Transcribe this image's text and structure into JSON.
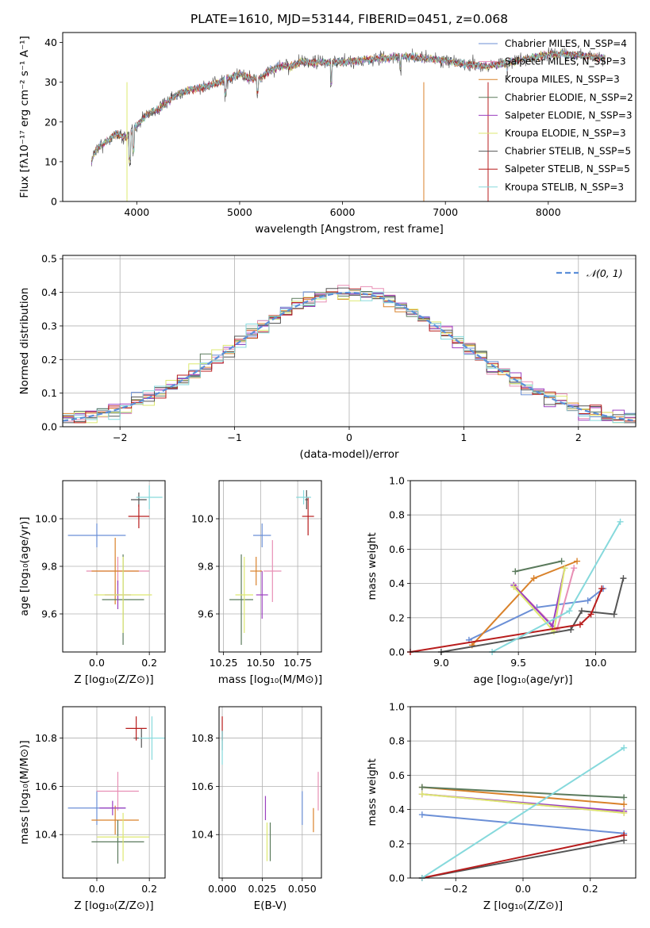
{
  "figure": {
    "title": "PLATE=1610, MJD=53144, FIBERID=0451, z=0.068"
  },
  "chart_data": [
    {
      "id": "spectrum",
      "type": "line",
      "xlabel": "wavelength [Angstrom, rest frame]",
      "ylabel": "Flux [fλ10⁻¹⁷ erg cm⁻² s⁻¹ A⁻¹]",
      "xlim": [
        3280,
        8850
      ],
      "ylim": [
        0,
        42.5
      ],
      "xticks": [
        4000,
        5000,
        6000,
        7000,
        8000
      ],
      "yticks": [
        0,
        10,
        20,
        30,
        40
      ],
      "grid": false,
      "legend_position": "right",
      "continuum": {
        "x": [
          3560,
          3600,
          3700,
          3800,
          3900,
          4000,
          4100,
          4200,
          4300,
          4400,
          4500,
          4600,
          4700,
          4800,
          4900,
          5000,
          5100,
          5200,
          5300,
          5400,
          5500,
          5600,
          5800,
          6000,
          6200,
          6400,
          6600,
          6800,
          7000,
          7200,
          7400,
          7600,
          7800,
          8000,
          8200,
          8400,
          8550
        ],
        "y": [
          10,
          13,
          15,
          17,
          16,
          19,
          22,
          23,
          25,
          27,
          28,
          28.5,
          29,
          30,
          31,
          32,
          31,
          31,
          33,
          34,
          34,
          35,
          35,
          35,
          35.5,
          36,
          36.5,
          36,
          35.5,
          34.5,
          34,
          35,
          36,
          37,
          37,
          36.5,
          36
        ]
      },
      "series": [
        {
          "name": "Chabrier MILES, N_SSP=4",
          "color": "#6b8fd6"
        },
        {
          "name": "Salpeter MILES, N_SSP=3",
          "color": "#e88fb5"
        },
        {
          "name": "Kroupa MILES, N_SSP=3",
          "color": "#d9822b"
        },
        {
          "name": "Chabrier ELODIE, N_SSP=2",
          "color": "#5a7a5c"
        },
        {
          "name": "Salpeter ELODIE, N_SSP=3",
          "color": "#9b3fc0"
        },
        {
          "name": "Kroupa ELODIE, N_SSP=3",
          "color": "#dde870"
        },
        {
          "name": "Chabrier STELIB, N_SSP=5",
          "color": "#555555"
        },
        {
          "name": "Salpeter STELIB, N_SSP=5",
          "color": "#b81d1d"
        },
        {
          "name": "Kroupa STELIB, N_SSP=3",
          "color": "#86d9dc"
        }
      ]
    },
    {
      "id": "residuals",
      "type": "histogram",
      "xlabel": "(data-model)/error",
      "ylabel": "Normed distribution",
      "xlim": [
        -2.5,
        2.5
      ],
      "ylim": [
        0,
        0.51
      ],
      "xticks": [
        -2,
        -1,
        0,
        1,
        2
      ],
      "xtick_labels": [
        "−2",
        "−1",
        "0",
        "1",
        "2"
      ],
      "yticks": [
        0.0,
        0.1,
        0.2,
        0.3,
        0.4,
        0.5
      ],
      "ytick_labels": [
        "0.0",
        "0.1",
        "0.2",
        "0.3",
        "0.4",
        "0.5"
      ],
      "grid": true,
      "legend_position": "top-right",
      "gaussian_label": "𝒩(0, 1)",
      "gaussian_color": "#5b8fd9",
      "bin_width": 0.1
    },
    {
      "id": "age-vs-Z",
      "type": "scatter",
      "xlabel": "Z [log₁₀(Z/Z⊙)]",
      "ylabel": "age  [log₁₀(age/yr)]",
      "xlim": [
        -0.13,
        0.26
      ],
      "ylim": [
        9.44,
        10.16
      ],
      "xticks": [
        0.0,
        0.2
      ],
      "xtick_labels": [
        "0.0",
        "0.2"
      ],
      "yticks": [
        9.6,
        9.8,
        10.0
      ],
      "ytick_labels": [
        "9.6",
        "9.8",
        "10.0"
      ],
      "grid": true,
      "points": [
        {
          "color": "#6b8fd6",
          "x": 0.0,
          "y": 9.93,
          "xerr": 0.11,
          "yerr": 0.05
        },
        {
          "color": "#e88fb5",
          "x": 0.08,
          "y": 9.78,
          "xerr": 0.12,
          "yerr": 0.06
        },
        {
          "color": "#d9822b",
          "x": 0.07,
          "y": 9.78,
          "xerr": 0.09,
          "yerr": 0.14
        },
        {
          "color": "#5a7a5c",
          "x": 0.1,
          "y": 9.66,
          "xerr": 0.08,
          "yerr": 0.19
        },
        {
          "color": "#9b3fc0",
          "x": 0.08,
          "y": 9.68,
          "xerr": 0.05,
          "yerr": 0.06
        },
        {
          "color": "#dde870",
          "x": 0.1,
          "y": 9.68,
          "xerr": 0.11,
          "yerr": 0.16
        },
        {
          "color": "#555555",
          "x": 0.16,
          "y": 10.08,
          "xerr": 0.03,
          "yerr": 0.03
        },
        {
          "color": "#b81d1d",
          "x": 0.16,
          "y": 10.01,
          "xerr": 0.04,
          "yerr": 0.05
        },
        {
          "color": "#86d9dc",
          "x": 0.2,
          "y": 10.09,
          "xerr": 0.05,
          "yerr": 0.05
        }
      ]
    },
    {
      "id": "age-vs-mass",
      "type": "scatter",
      "xlabel": "mass [log₁₀(M/M⊙)]",
      "ylabel": "",
      "xlim": [
        10.22,
        10.91
      ],
      "ylim": [
        9.44,
        10.16
      ],
      "xticks": [
        10.25,
        10.5,
        10.75
      ],
      "xtick_labels": [
        "10.25",
        "10.50",
        "10.75"
      ],
      "yticks": [
        9.6,
        9.8,
        10.0
      ],
      "ytick_labels": [
        "9.6",
        "9.8",
        "10.0"
      ],
      "grid": true,
      "points": [
        {
          "color": "#6b8fd6",
          "x": 10.51,
          "y": 9.93,
          "xerr": 0.06,
          "yerr": 0.05
        },
        {
          "color": "#e88fb5",
          "x": 10.58,
          "y": 9.78,
          "xerr": 0.06,
          "yerr": 0.13
        },
        {
          "color": "#d9822b",
          "x": 10.47,
          "y": 9.78,
          "xerr": 0.04,
          "yerr": 0.06
        },
        {
          "color": "#5a7a5c",
          "x": 10.37,
          "y": 9.66,
          "xerr": 0.08,
          "yerr": 0.19
        },
        {
          "color": "#9b3fc0",
          "x": 10.51,
          "y": 9.68,
          "xerr": 0.04,
          "yerr": 0.1
        },
        {
          "color": "#dde870",
          "x": 10.39,
          "y": 9.68,
          "xerr": 0.06,
          "yerr": 0.16
        },
        {
          "color": "#555555",
          "x": 10.81,
          "y": 10.08,
          "xerr": 0.01,
          "yerr": 0.04
        },
        {
          "color": "#b81d1d",
          "x": 10.82,
          "y": 10.01,
          "xerr": 0.04,
          "yerr": 0.08
        },
        {
          "color": "#86d9dc",
          "x": 10.79,
          "y": 10.09,
          "xerr": 0.05,
          "yerr": 0.03
        }
      ]
    },
    {
      "id": "weight-vs-age",
      "type": "line",
      "xlabel": "age  [log₁₀(age/yr)]",
      "ylabel": "mass weight",
      "xlim": [
        8.8,
        10.26
      ],
      "ylim": [
        0.0,
        1.0
      ],
      "xticks": [
        9.0,
        9.5,
        10.0
      ],
      "xtick_labels": [
        "9.0",
        "9.5",
        "10.0"
      ],
      "yticks": [
        0.0,
        0.2,
        0.4,
        0.6,
        0.8,
        1.0
      ],
      "ytick_labels": [
        "0.0",
        "0.2",
        "0.4",
        "0.6",
        "0.8",
        "1.0"
      ],
      "grid": true,
      "series": [
        {
          "color": "#6b8fd6",
          "x": [
            9.18,
            9.62,
            9.95,
            10.05
          ],
          "y": [
            0.07,
            0.26,
            0.3,
            0.37
          ]
        },
        {
          "color": "#e88fb5",
          "x": [
            9.48,
            9.75,
            9.86
          ],
          "y": [
            0.38,
            0.13,
            0.49
          ]
        },
        {
          "color": "#d9822b",
          "x": [
            9.2,
            9.6,
            9.88
          ],
          "y": [
            0.04,
            0.43,
            0.53
          ]
        },
        {
          "color": "#5a7a5c",
          "x": [
            9.48,
            9.78
          ],
          "y": [
            0.47,
            0.53
          ]
        },
        {
          "color": "#9b3fc0",
          "x": [
            9.47,
            9.72,
            9.8
          ],
          "y": [
            0.39,
            0.15,
            0.49
          ]
        },
        {
          "color": "#dde870",
          "x": [
            9.47,
            9.73,
            9.8
          ],
          "y": [
            0.38,
            0.12,
            0.49
          ]
        },
        {
          "color": "#555555",
          "x": [
            9.0,
            9.84,
            9.91,
            10.12,
            10.18
          ],
          "y": [
            0.0,
            0.13,
            0.24,
            0.22,
            0.43
          ]
        },
        {
          "color": "#b81d1d",
          "x": [
            8.8,
            9.9,
            9.97,
            10.04
          ],
          "y": [
            0.0,
            0.16,
            0.22,
            0.37
          ]
        },
        {
          "color": "#86d9dc",
          "x": [
            9.33,
            9.83,
            10.16
          ],
          "y": [
            0.0,
            0.24,
            0.76
          ]
        }
      ]
    },
    {
      "id": "mass-vs-Z",
      "type": "scatter",
      "xlabel": "Z [log₁₀(Z/Z⊙)]",
      "ylabel": "mass [log₁₀(M/M⊙)]",
      "xlim": [
        -0.13,
        0.26
      ],
      "ylim": [
        10.22,
        10.93
      ],
      "xticks": [
        0.0,
        0.2
      ],
      "xtick_labels": [
        "0.0",
        "0.2"
      ],
      "yticks": [
        10.4,
        10.6,
        10.8
      ],
      "ytick_labels": [
        "10.4",
        "10.6",
        "10.8"
      ],
      "grid": true,
      "points": [
        {
          "color": "#6b8fd6",
          "x": 0.0,
          "y": 10.51,
          "xerr": 0.11,
          "yerr": 0.07
        },
        {
          "color": "#e88fb5",
          "x": 0.08,
          "y": 10.58,
          "xerr": 0.08,
          "yerr": 0.08
        },
        {
          "color": "#d9822b",
          "x": 0.07,
          "y": 10.46,
          "xerr": 0.09,
          "yerr": 0.06
        },
        {
          "color": "#5a7a5c",
          "x": 0.08,
          "y": 10.37,
          "xerr": 0.1,
          "yerr": 0.09
        },
        {
          "color": "#9b3fc0",
          "x": 0.06,
          "y": 10.51,
          "xerr": 0.05,
          "yerr": 0.03
        },
        {
          "color": "#dde870",
          "x": 0.1,
          "y": 10.39,
          "xerr": 0.1,
          "yerr": 0.1
        },
        {
          "color": "#555555",
          "x": 0.17,
          "y": 10.8,
          "xerr": 0.03,
          "yerr": 0.04
        },
        {
          "color": "#b81d1d",
          "x": 0.15,
          "y": 10.84,
          "xerr": 0.04,
          "yerr": 0.05
        },
        {
          "color": "#86d9dc",
          "x": 0.21,
          "y": 10.8,
          "xerr": 0.05,
          "yerr": 0.09
        }
      ]
    },
    {
      "id": "mass-vs-ebv",
      "type": "scatter",
      "xlabel": "E(B-V)",
      "ylabel": "",
      "xlim": [
        -0.002,
        0.062
      ],
      "ylim": [
        10.22,
        10.93
      ],
      "xticks": [
        0.0,
        0.025,
        0.05
      ],
      "xtick_labels": [
        "0.000",
        "0.025",
        "0.050"
      ],
      "yticks": [
        10.4,
        10.6,
        10.8
      ],
      "ytick_labels": [
        "10.4",
        "10.6",
        "10.8"
      ],
      "grid": true,
      "points": [
        {
          "color": "#6b8fd6",
          "x": 0.05,
          "y": 10.51,
          "xerr": 0.0,
          "yerr": 0.07
        },
        {
          "color": "#e88fb5",
          "x": 0.06,
          "y": 10.58,
          "xerr": 0.0,
          "yerr": 0.08
        },
        {
          "color": "#d9822b",
          "x": 0.057,
          "y": 10.46,
          "xerr": 0.0,
          "yerr": 0.05
        },
        {
          "color": "#5a7a5c",
          "x": 0.03,
          "y": 10.37,
          "xerr": 0.0,
          "yerr": 0.08
        },
        {
          "color": "#9b3fc0",
          "x": 0.027,
          "y": 10.51,
          "xerr": 0.0,
          "yerr": 0.05
        },
        {
          "color": "#dde870",
          "x": 0.028,
          "y": 10.37,
          "xerr": 0.0,
          "yerr": 0.08
        },
        {
          "color": "#555555",
          "x": 0.0,
          "y": 10.79,
          "xerr": 0.0,
          "yerr": 0.04
        },
        {
          "color": "#b81d1d",
          "x": 0.0,
          "y": 10.84,
          "xerr": 0.0,
          "yerr": 0.05
        },
        {
          "color": "#86d9dc",
          "x": 0.0,
          "y": 10.76,
          "xerr": 0.0,
          "yerr": 0.07
        }
      ]
    },
    {
      "id": "weight-vs-Z",
      "type": "line",
      "xlabel": "Z [log₁₀(Z/Z⊙)]",
      "ylabel": "mass weight",
      "xlim": [
        -0.335,
        0.335
      ],
      "ylim": [
        0.0,
        1.0
      ],
      "xticks": [
        -0.2,
        0.0,
        0.2
      ],
      "xtick_labels": [
        "−0.2",
        "0.0",
        "0.2"
      ],
      "yticks": [
        0.0,
        0.2,
        0.4,
        0.6,
        0.8,
        1.0
      ],
      "ytick_labels": [
        "0.0",
        "0.2",
        "0.4",
        "0.6",
        "0.8",
        "1.0"
      ],
      "grid": true,
      "series": [
        {
          "color": "#6b8fd6",
          "x": [
            -0.3,
            0.3
          ],
          "y": [
            0.37,
            0.26
          ]
        },
        {
          "color": "#e88fb5",
          "x": [
            -0.3,
            0.3
          ],
          "y": [
            0.49,
            0.38
          ]
        },
        {
          "color": "#d9822b",
          "x": [
            -0.3,
            0.3
          ],
          "y": [
            0.53,
            0.43
          ]
        },
        {
          "color": "#5a7a5c",
          "x": [
            -0.3,
            0.3
          ],
          "y": [
            0.53,
            0.47
          ]
        },
        {
          "color": "#9b3fc0",
          "x": [
            -0.3,
            0.3
          ],
          "y": [
            0.49,
            0.39
          ]
        },
        {
          "color": "#dde870",
          "x": [
            -0.3,
            0.3
          ],
          "y": [
            0.49,
            0.38
          ]
        },
        {
          "color": "#555555",
          "x": [
            -0.3,
            0.3
          ],
          "y": [
            0.0,
            0.22
          ]
        },
        {
          "color": "#b81d1d",
          "x": [
            -0.3,
            0.3
          ],
          "y": [
            0.0,
            0.25
          ]
        },
        {
          "color": "#86d9dc",
          "x": [
            -0.3,
            0.3
          ],
          "y": [
            0.0,
            0.76
          ]
        }
      ]
    }
  ]
}
